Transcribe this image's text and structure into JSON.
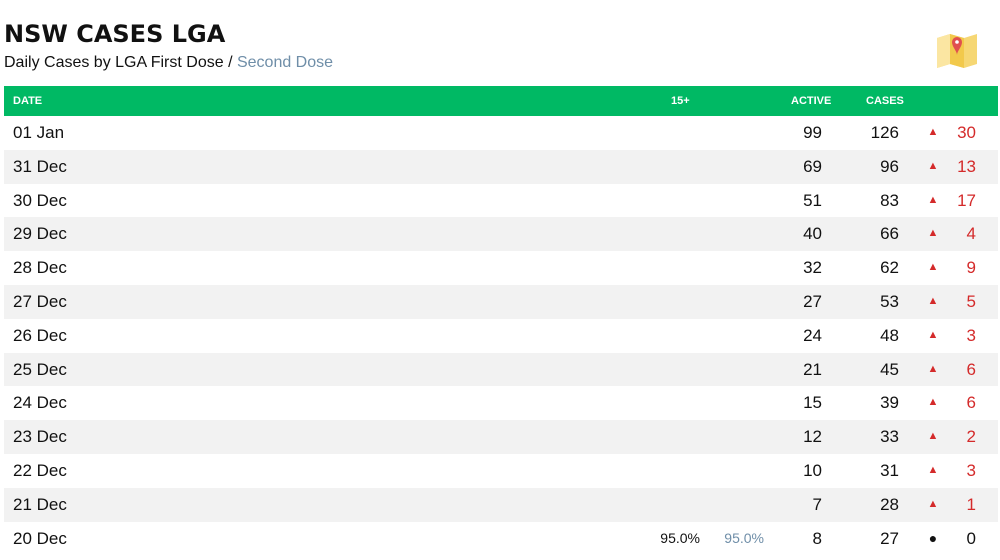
{
  "header": {
    "title": "NSW CASES LGA",
    "subtitle_prefix": "Daily Cases by LGA First Dose",
    "subtitle_separator": " / ",
    "subtitle_link": "Second Dose",
    "map_icon": "map-pin-icon"
  },
  "colors": {
    "header_bg": "#00b964",
    "link": "#6f8ea8",
    "increase": "#d42a2a",
    "row_alt": "#f2f2f2"
  },
  "table": {
    "columns": {
      "date": "DATE",
      "age": "15+",
      "active": "ACTIVE",
      "cases": "CASES"
    },
    "rows": [
      {
        "date": "01 Jan",
        "first": "",
        "second": "",
        "active": "99",
        "cases": "126",
        "trend": "up",
        "arrow": "▲",
        "change": "30"
      },
      {
        "date": "31 Dec",
        "first": "",
        "second": "",
        "active": "69",
        "cases": "96",
        "trend": "up",
        "arrow": "▲",
        "change": "13"
      },
      {
        "date": "30 Dec",
        "first": "",
        "second": "",
        "active": "51",
        "cases": "83",
        "trend": "up",
        "arrow": "▲",
        "change": "17"
      },
      {
        "date": "29 Dec",
        "first": "",
        "second": "",
        "active": "40",
        "cases": "66",
        "trend": "up",
        "arrow": "▲",
        "change": "4"
      },
      {
        "date": "28 Dec",
        "first": "",
        "second": "",
        "active": "32",
        "cases": "62",
        "trend": "up",
        "arrow": "▲",
        "change": "9"
      },
      {
        "date": "27 Dec",
        "first": "",
        "second": "",
        "active": "27",
        "cases": "53",
        "trend": "up",
        "arrow": "▲",
        "change": "5"
      },
      {
        "date": "26 Dec",
        "first": "",
        "second": "",
        "active": "24",
        "cases": "48",
        "trend": "up",
        "arrow": "▲",
        "change": "3"
      },
      {
        "date": "25 Dec",
        "first": "",
        "second": "",
        "active": "21",
        "cases": "45",
        "trend": "up",
        "arrow": "▲",
        "change": "6"
      },
      {
        "date": "24 Dec",
        "first": "",
        "second": "",
        "active": "15",
        "cases": "39",
        "trend": "up",
        "arrow": "▲",
        "change": "6"
      },
      {
        "date": "23 Dec",
        "first": "",
        "second": "",
        "active": "12",
        "cases": "33",
        "trend": "up",
        "arrow": "▲",
        "change": "2"
      },
      {
        "date": "22 Dec",
        "first": "",
        "second": "",
        "active": "10",
        "cases": "31",
        "trend": "up",
        "arrow": "▲",
        "change": "3"
      },
      {
        "date": "21 Dec",
        "first": "",
        "second": "",
        "active": "7",
        "cases": "28",
        "trend": "up",
        "arrow": "▲",
        "change": "1"
      },
      {
        "date": "20 Dec",
        "first": "95.0%",
        "second": "95.0%",
        "active": "8",
        "cases": "27",
        "trend": "flat",
        "arrow": "●",
        "change": "0"
      }
    ]
  }
}
